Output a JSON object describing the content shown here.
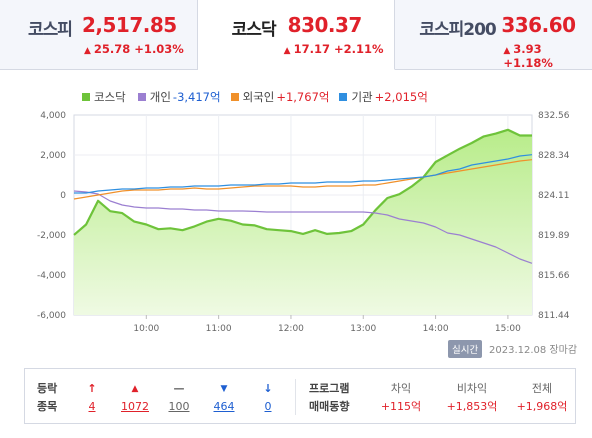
{
  "tabs": [
    {
      "name": "코스피",
      "value": "2,517.85",
      "change": "25.78 +1.03%",
      "active": false
    },
    {
      "name": "코스닥",
      "value": "830.37",
      "change": "17.17 +2.11%",
      "active": true
    },
    {
      "name": "코스피200",
      "value": "336.60",
      "change": "3.93 +1.18%",
      "active": false
    }
  ],
  "legend": [
    {
      "label": "코스닥",
      "value": "",
      "color": "#6ec33a",
      "value_color": "#333333"
    },
    {
      "label": "개인",
      "value": "-3,417억",
      "color": "#9b7fd1",
      "value_color": "#1e5fd1"
    },
    {
      "label": "외국인",
      "value": "+1,767억",
      "color": "#f0902a",
      "value_color": "#e0212a"
    },
    {
      "label": "기관",
      "value": "+2,015억",
      "color": "#2f8fe0",
      "value_color": "#e0212a"
    }
  ],
  "chart_data": {
    "type": "line",
    "x": [
      "09:00",
      "09:10",
      "09:20",
      "09:30",
      "09:40",
      "09:50",
      "10:00",
      "10:10",
      "10:20",
      "10:30",
      "10:40",
      "10:50",
      "11:00",
      "11:10",
      "11:20",
      "11:30",
      "11:40",
      "11:50",
      "12:00",
      "12:10",
      "12:20",
      "12:30",
      "12:40",
      "12:50",
      "13:00",
      "13:10",
      "13:20",
      "13:30",
      "13:40",
      "13:50",
      "14:00",
      "14:10",
      "14:20",
      "14:30",
      "14:40",
      "14:50",
      "15:00",
      "15:10",
      "15:20"
    ],
    "x_ticks": [
      "10:00",
      "11:00",
      "12:00",
      "13:00",
      "14:00",
      "15:00"
    ],
    "y_left_ticks": [
      "4,000",
      "2,000",
      "0",
      "-2,000",
      "-4,000",
      "-6,000"
    ],
    "y_left_range": [
      -6000,
      4000
    ],
    "y_right_ticks": [
      "832.56",
      "828.34",
      "824.11",
      "819.89",
      "815.66",
      "811.44"
    ],
    "y_right_range": [
      811.44,
      832.56
    ],
    "baseline_dotted": 815.66,
    "series": [
      {
        "name": "코스닥",
        "axis": "right",
        "color": "#6ec33a",
        "values": [
          819.9,
          821.0,
          823.5,
          822.4,
          822.2,
          821.3,
          821.0,
          820.5,
          820.6,
          820.4,
          820.8,
          821.3,
          821.6,
          821.4,
          821.0,
          820.9,
          820.5,
          820.4,
          820.3,
          820.0,
          820.4,
          820.0,
          820.1,
          820.3,
          821.0,
          822.5,
          823.8,
          824.2,
          825.0,
          826.0,
          827.6,
          828.3,
          829.0,
          829.6,
          830.3,
          830.6,
          831.0,
          830.4,
          830.4
        ]
      },
      {
        "name": "개인",
        "axis": "left",
        "color": "#9b7fd1",
        "values": [
          200,
          150,
          50,
          -300,
          -500,
          -600,
          -650,
          -650,
          -700,
          -700,
          -750,
          -750,
          -800,
          -800,
          -800,
          -820,
          -850,
          -850,
          -850,
          -850,
          -850,
          -850,
          -850,
          -850,
          -850,
          -900,
          -1000,
          -1200,
          -1300,
          -1400,
          -1600,
          -1900,
          -2000,
          -2200,
          -2400,
          -2600,
          -2900,
          -3200,
          -3417
        ]
      },
      {
        "name": "외국인",
        "axis": "left",
        "color": "#f0902a",
        "values": [
          -200,
          -100,
          0,
          100,
          200,
          250,
          250,
          250,
          300,
          300,
          350,
          300,
          300,
          350,
          400,
          450,
          450,
          450,
          450,
          400,
          400,
          450,
          450,
          450,
          500,
          500,
          600,
          700,
          800,
          900,
          1000,
          1100,
          1200,
          1300,
          1400,
          1500,
          1600,
          1700,
          1767
        ]
      },
      {
        "name": "기관",
        "axis": "left",
        "color": "#2f8fe0",
        "values": [
          100,
          100,
          200,
          250,
          300,
          300,
          350,
          350,
          400,
          400,
          450,
          450,
          450,
          500,
          500,
          500,
          550,
          550,
          600,
          600,
          600,
          650,
          650,
          650,
          700,
          700,
          750,
          800,
          850,
          900,
          1000,
          1200,
          1300,
          1500,
          1600,
          1700,
          1800,
          1950,
          2015
        ]
      }
    ]
  },
  "date_badge": "실시간",
  "date_text": "2023.12.08 장마감",
  "rise_fall": {
    "labels": [
      "등락",
      "종목"
    ],
    "items": [
      {
        "symbol": "↑",
        "value": "4",
        "color": "#e0212a"
      },
      {
        "symbol": "▲",
        "value": "1072",
        "color": "#e0212a"
      },
      {
        "symbol": "—",
        "value": "100",
        "color": "#666666"
      },
      {
        "symbol": "▼",
        "value": "464",
        "color": "#1e5fd1"
      },
      {
        "symbol": "↓",
        "value": "0",
        "color": "#1e5fd1"
      }
    ]
  },
  "program": {
    "labels": [
      "프로그램",
      "매매동향"
    ],
    "cols": [
      {
        "head": "차익",
        "value": "+115억"
      },
      {
        "head": "비차익",
        "value": "+1,853억"
      },
      {
        "head": "전체",
        "value": "+1,968억"
      }
    ]
  }
}
